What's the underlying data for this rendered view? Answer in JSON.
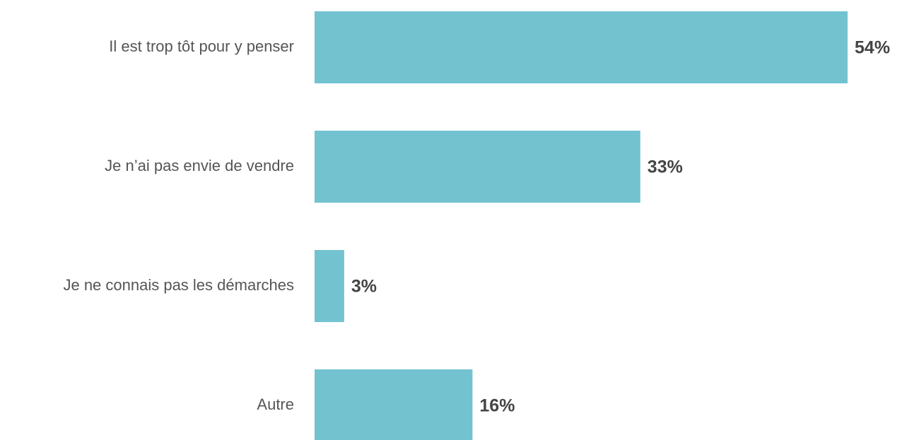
{
  "chart_data": {
    "type": "bar",
    "orientation": "horizontal",
    "categories": [
      "Il est trop tôt pour y penser",
      "Je n’ai pas envie de vendre",
      "Je ne connais pas les démarches",
      "Autre"
    ],
    "values": [
      54,
      33,
      3,
      16
    ],
    "value_labels": [
      "54%",
      "33%",
      "3%",
      "16%"
    ],
    "color": "#72c3cf",
    "xlim": [
      0,
      55
    ]
  }
}
